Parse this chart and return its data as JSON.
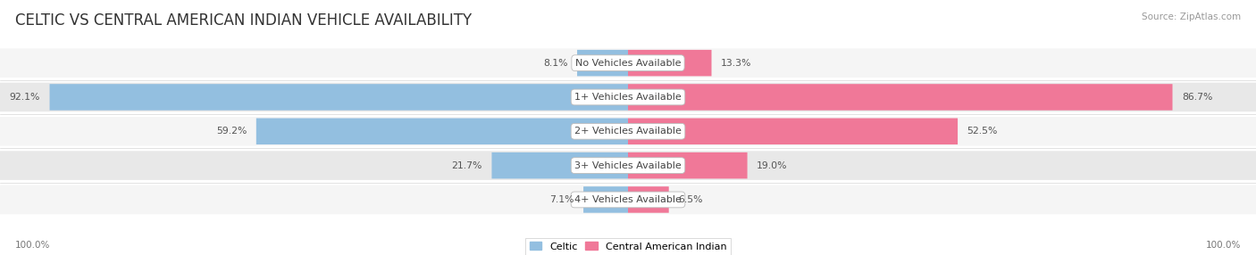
{
  "title": "CELTIC VS CENTRAL AMERICAN INDIAN VEHICLE AVAILABILITY",
  "source": "Source: ZipAtlas.com",
  "categories": [
    "No Vehicles Available",
    "1+ Vehicles Available",
    "2+ Vehicles Available",
    "3+ Vehicles Available",
    "4+ Vehicles Available"
  ],
  "celtic_values": [
    8.1,
    92.1,
    59.2,
    21.7,
    7.1
  ],
  "central_values": [
    13.3,
    86.7,
    52.5,
    19.0,
    6.5
  ],
  "celtic_color": "#93bfe0",
  "central_color": "#f07898",
  "celtic_label": "Celtic",
  "central_label": "Central American Indian",
  "bg_color": "#ffffff",
  "row_colors": [
    "#f5f5f5",
    "#e8e8e8"
  ],
  "max_val": 100.0,
  "title_fontsize": 12,
  "label_fontsize": 8.0,
  "value_fontsize": 7.8,
  "tick_fontsize": 7.5,
  "legend_fontsize": 8.0
}
